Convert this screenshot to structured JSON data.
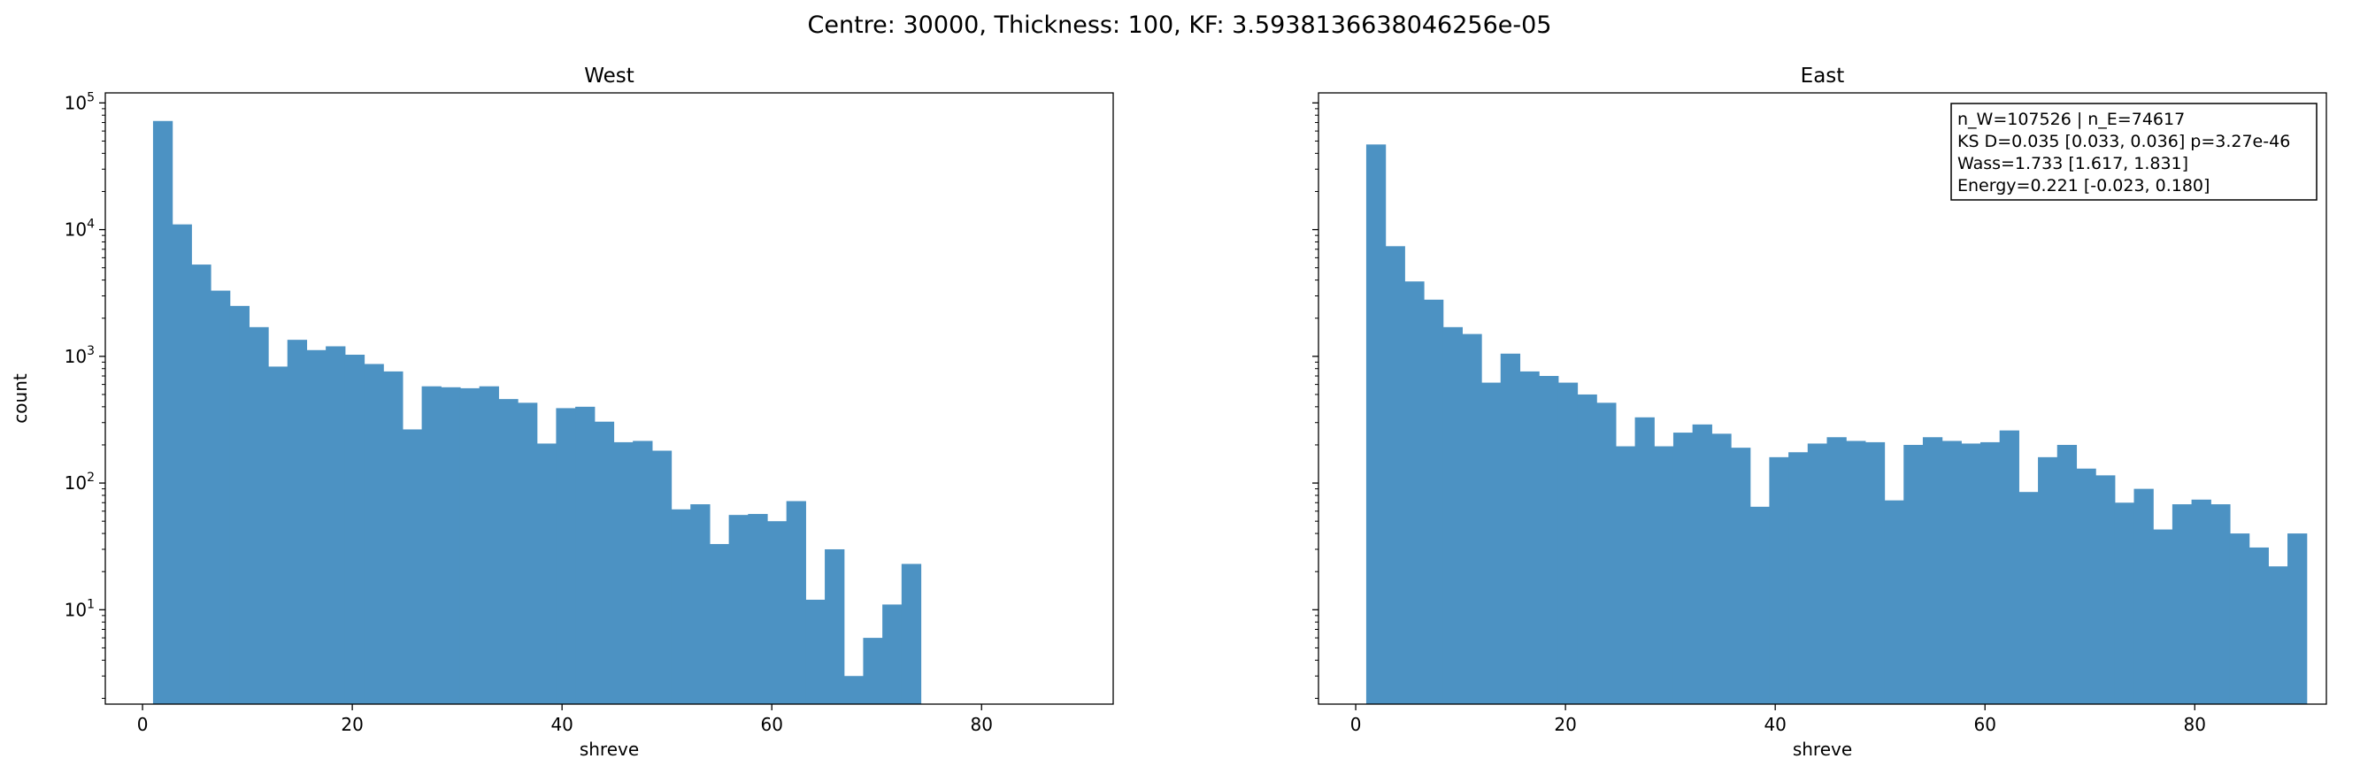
{
  "suptitle": "Centre: 30000, Thickness: 100, KF: 3.5938136638046256e-05",
  "chart_data": [
    {
      "type": "bar",
      "title": "West",
      "xlabel": "shreve",
      "ylabel": "count",
      "yscale": "log",
      "xlim": [
        -3.55,
        92.55
      ],
      "ylim": [
        1.8,
        120000
      ],
      "grid": false,
      "bin_start": 1,
      "bin_width": 1.83,
      "xticks": [
        0,
        20,
        40,
        60,
        80
      ],
      "xtick_labels": [
        "0",
        "20",
        "40",
        "60",
        "80"
      ],
      "yticks": [
        10,
        100,
        1000,
        10000,
        100000
      ],
      "ytick_labels": [
        {
          "base": "10",
          "exp": "1"
        },
        {
          "base": "10",
          "exp": "2"
        },
        {
          "base": "10",
          "exp": "3"
        },
        {
          "base": "10",
          "exp": "4"
        },
        {
          "base": "10",
          "exp": "5"
        }
      ],
      "counts": [
        72000,
        11000,
        5300,
        3300,
        2500,
        1700,
        830,
        1350,
        1120,
        1200,
        1030,
        870,
        760,
        265,
        580,
        570,
        560,
        580,
        460,
        430,
        205,
        390,
        400,
        305,
        210,
        215,
        180,
        62,
        68,
        33,
        56,
        57,
        50,
        72,
        12,
        30,
        3,
        6,
        11,
        23,
        0,
        0,
        0,
        0,
        0,
        0,
        0,
        0,
        0,
        0
      ],
      "color": "#4C92C3"
    },
    {
      "type": "bar",
      "title": "East",
      "xlabel": "shreve",
      "ylabel": "",
      "yscale": "log",
      "xlim": [
        -3.55,
        92.55
      ],
      "ylim": [
        1.8,
        120000
      ],
      "grid": false,
      "bin_start": 1,
      "bin_width": 1.83,
      "xticks": [
        0,
        20,
        40,
        60,
        80
      ],
      "xtick_labels": [
        "0",
        "20",
        "40",
        "60",
        "80"
      ],
      "yticks": [
        10,
        100,
        1000,
        10000,
        100000
      ],
      "ytick_labels": [],
      "counts": [
        47000,
        7400,
        3900,
        2800,
        1700,
        1500,
        620,
        1050,
        760,
        700,
        620,
        500,
        430,
        195,
        330,
        195,
        250,
        290,
        245,
        190,
        65,
        160,
        175,
        205,
        230,
        215,
        210,
        73,
        200,
        230,
        215,
        205,
        210,
        260,
        85,
        160,
        200,
        130,
        115,
        70,
        90,
        43,
        68,
        74,
        68,
        40,
        31,
        22,
        40,
        0
      ],
      "color": "#4C92C3",
      "annotation": {
        "position": "top-right",
        "lines": [
          "n_W=107526 | n_E=74617",
          "KS D=0.035 [0.033, 0.036]  p=3.27e-46",
          "Wass=1.733 [1.617, 1.831]",
          "Energy=0.221 [-0.023, 0.180]"
        ]
      }
    }
  ]
}
